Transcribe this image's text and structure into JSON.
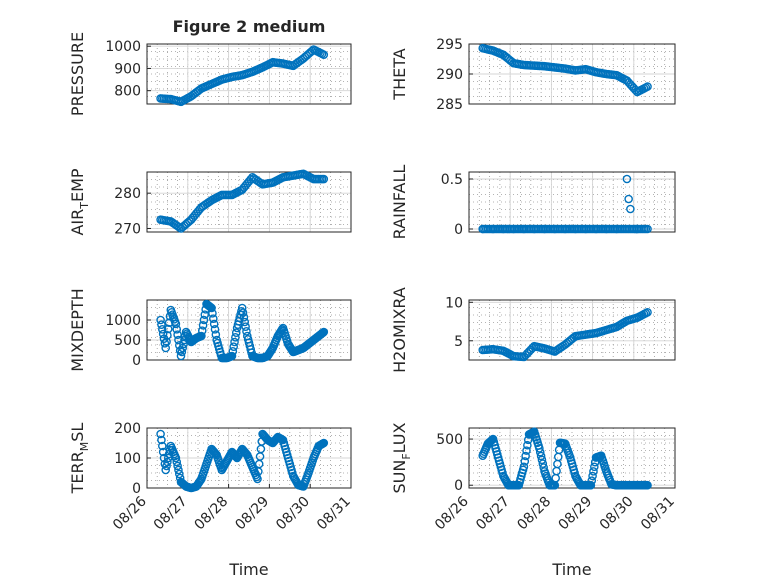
{
  "chart_data": [
    {
      "type": "scatter",
      "title": "Figure 2 medium",
      "ylabel": "PRESSURE",
      "ylim": [
        740,
        1010
      ],
      "yticks": [
        800,
        900,
        1000
      ],
      "y_ticklabels": [
        "800",
        "900",
        "1000"
      ],
      "x_ticklabels": [],
      "color": "#0072BD",
      "x": [
        "08/26 08:00",
        "08/26 14:00",
        "08/26 20:00",
        "08/27 02:00",
        "08/27 08:00",
        "08/27 14:00",
        "08/27 20:00",
        "08/28 02:00",
        "08/28 08:00",
        "08/28 14:00",
        "08/28 20:00",
        "08/29 02:00",
        "08/29 08:00",
        "08/29 14:00",
        "08/29 20:00",
        "08/30 02:00",
        "08/30 08:00"
      ],
      "y": [
        765,
        762,
        750,
        775,
        810,
        830,
        850,
        862,
        870,
        885,
        905,
        928,
        922,
        912,
        945,
        985,
        962
      ]
    },
    {
      "type": "scatter",
      "title": "",
      "ylabel": "THETA",
      "ylim": [
        285,
        295
      ],
      "yticks": [
        285,
        290,
        295
      ],
      "y_ticklabels": [
        "285",
        "290",
        "295"
      ],
      "x_ticklabels": [],
      "color": "#0072BD",
      "x": [
        "08/26 08:00",
        "08/26 14:00",
        "08/26 20:00",
        "08/27 02:00",
        "08/27 08:00",
        "08/27 14:00",
        "08/27 20:00",
        "08/28 02:00",
        "08/28 08:00",
        "08/28 14:00",
        "08/28 20:00",
        "08/29 02:00",
        "08/29 08:00",
        "08/29 14:00",
        "08/29 20:00",
        "08/30 02:00",
        "08/30 08:00"
      ],
      "y": [
        294.3,
        293.9,
        293.2,
        291.8,
        291.5,
        291.4,
        291.3,
        291.1,
        290.9,
        290.6,
        290.8,
        290.3,
        290.0,
        289.8,
        288.9,
        287.0,
        287.9
      ]
    },
    {
      "type": "scatter",
      "title": "",
      "ylabel": "AIR_TEMP",
      "ylim": [
        269,
        286
      ],
      "yticks": [
        270,
        280
      ],
      "y_ticklabels": [
        "270",
        "280"
      ],
      "x_ticklabels": [],
      "color": "#0072BD",
      "x": [
        "08/26 08:00",
        "08/26 14:00",
        "08/26 20:00",
        "08/27 02:00",
        "08/27 08:00",
        "08/27 14:00",
        "08/27 20:00",
        "08/28 02:00",
        "08/28 08:00",
        "08/28 14:00",
        "08/28 20:00",
        "08/29 02:00",
        "08/29 08:00",
        "08/29 14:00",
        "08/29 20:00",
        "08/30 02:00",
        "08/30 08:00"
      ],
      "y": [
        272.5,
        272.0,
        270.0,
        272.5,
        276.0,
        278.0,
        279.5,
        279.5,
        281.0,
        284.5,
        282.5,
        283.0,
        284.5,
        285.0,
        285.5,
        284.0,
        284.0
      ]
    },
    {
      "type": "scatter",
      "title": "",
      "ylabel": "RAINFALL",
      "ylim": [
        -0.03,
        0.57
      ],
      "yticks": [
        0,
        0.5
      ],
      "y_ticklabels": [
        "0",
        "0.5"
      ],
      "x_ticklabels": [],
      "color": "#0072BD",
      "x": [
        "08/26 08:00",
        "08/26 14:00",
        "08/26 20:00",
        "08/27 02:00",
        "08/27 08:00",
        "08/27 14:00",
        "08/27 20:00",
        "08/28 02:00",
        "08/28 08:00",
        "08/28 14:00",
        "08/28 20:00",
        "08/29 02:00",
        "08/29 08:00",
        "08/29 14:00",
        "08/29 20:00",
        "08/29 21:00",
        "08/29 22:00",
        "08/30 02:00",
        "08/30 08:00"
      ],
      "y": [
        0,
        0,
        0,
        0,
        0,
        0,
        0,
        0,
        0,
        0,
        0,
        0,
        0,
        0,
        0.5,
        0.3,
        0.2,
        0,
        0
      ]
    },
    {
      "type": "scatter",
      "title": "",
      "ylabel": "MIXDEPTH",
      "ylim": [
        0,
        1500
      ],
      "yticks": [
        0,
        500,
        1000
      ],
      "y_ticklabels": [
        "0",
        "500",
        "1000"
      ],
      "x_ticklabels": [],
      "color": "#0072BD",
      "x": [
        "08/26 08:00",
        "08/26 11:00",
        "08/26 14:00",
        "08/26 17:00",
        "08/26 20:00",
        "08/26 23:00",
        "08/27 02:00",
        "08/27 05:00",
        "08/27 08:00",
        "08/27 11:00",
        "08/27 14:00",
        "08/27 17:00",
        "08/27 20:00",
        "08/27 23:00",
        "08/28 02:00",
        "08/28 05:00",
        "08/28 08:00",
        "08/28 11:00",
        "08/28 14:00",
        "08/28 17:00",
        "08/28 20:00",
        "08/28 23:00",
        "08/29 02:00",
        "08/29 05:00",
        "08/29 08:00",
        "08/29 11:00",
        "08/29 14:00",
        "08/29 17:00",
        "08/29 20:00",
        "08/29 23:00",
        "08/30 02:00",
        "08/30 05:00",
        "08/30 08:00"
      ],
      "y": [
        1000,
        300,
        1250,
        900,
        100,
        700,
        450,
        550,
        600,
        1400,
        1300,
        500,
        50,
        50,
        100,
        800,
        1300,
        600,
        100,
        50,
        50,
        100,
        300,
        600,
        800,
        400,
        200,
        250,
        300,
        400,
        500,
        600,
        700
      ]
    },
    {
      "type": "scatter",
      "title": "",
      "ylabel": "H2OMIXRA",
      "ylim": [
        2.5,
        10.3
      ],
      "yticks": [
        5,
        10
      ],
      "y_ticklabels": [
        "5",
        "10"
      ],
      "x_ticklabels": [],
      "color": "#0072BD",
      "x": [
        "08/26 08:00",
        "08/26 14:00",
        "08/26 20:00",
        "08/27 02:00",
        "08/27 08:00",
        "08/27 14:00",
        "08/27 20:00",
        "08/28 02:00",
        "08/28 08:00",
        "08/28 14:00",
        "08/28 20:00",
        "08/29 02:00",
        "08/29 08:00",
        "08/29 14:00",
        "08/29 20:00",
        "08/30 02:00",
        "08/30 08:00"
      ],
      "y": [
        3.8,
        3.9,
        3.7,
        3.0,
        2.9,
        4.3,
        4.0,
        3.6,
        4.5,
        5.6,
        5.8,
        6.0,
        6.4,
        6.8,
        7.6,
        8.0,
        8.7
      ]
    },
    {
      "type": "scatter",
      "title": "",
      "ylabel": "TERR_MSL",
      "ylim": [
        0,
        200
      ],
      "yticks": [
        0,
        100,
        200
      ],
      "y_ticklabels": [
        "0",
        "100",
        "200"
      ],
      "x_ticks": [
        "08/26 00:00",
        "08/27 00:00",
        "08/28 00:00",
        "08/29 00:00",
        "08/30 00:00",
        "08/31 00:00"
      ],
      "x_ticklabels": [
        "08/26",
        "08/27",
        "08/28",
        "08/29",
        "08/30",
        "08/31"
      ],
      "xlim": [
        "08/26 00:00",
        "08/31 00:00"
      ],
      "xlabel": "Time",
      "color": "#0072BD",
      "x": [
        "08/26 08:00",
        "08/26 11:00",
        "08/26 14:00",
        "08/26 17:00",
        "08/26 20:00",
        "08/26 23:00",
        "08/27 02:00",
        "08/27 05:00",
        "08/27 08:00",
        "08/27 11:00",
        "08/27 14:00",
        "08/27 17:00",
        "08/27 20:00",
        "08/27 23:00",
        "08/28 02:00",
        "08/28 05:00",
        "08/28 08:00",
        "08/28 11:00",
        "08/28 14:00",
        "08/28 17:00",
        "08/28 20:00",
        "08/28 23:00",
        "08/29 02:00",
        "08/29 05:00",
        "08/29 08:00",
        "08/29 11:00",
        "08/29 14:00",
        "08/29 17:00",
        "08/29 20:00",
        "08/29 23:00",
        "08/30 02:00",
        "08/30 05:00",
        "08/30 08:00"
      ],
      "y": [
        180,
        60,
        140,
        100,
        20,
        5,
        0,
        5,
        30,
        80,
        130,
        110,
        60,
        90,
        120,
        100,
        130,
        110,
        70,
        30,
        180,
        160,
        150,
        170,
        160,
        100,
        40,
        10,
        5,
        50,
        100,
        140,
        150
      ]
    },
    {
      "type": "scatter",
      "title": "",
      "ylabel": "SUN_FLUX",
      "ylim": [
        -30,
        620
      ],
      "yticks": [
        0,
        500
      ],
      "y_ticklabels": [
        "0",
        "500"
      ],
      "x_ticks": [
        "08/26 00:00",
        "08/27 00:00",
        "08/28 00:00",
        "08/29 00:00",
        "08/30 00:00",
        "08/31 00:00"
      ],
      "x_ticklabels": [
        "08/26",
        "08/27",
        "08/28",
        "08/29",
        "08/30",
        "08/31"
      ],
      "xlim": [
        "08/26 00:00",
        "08/31 00:00"
      ],
      "xlabel": "Time",
      "color": "#0072BD",
      "x": [
        "08/26 08:00",
        "08/26 11:00",
        "08/26 14:00",
        "08/26 17:00",
        "08/26 20:00",
        "08/26 23:00",
        "08/27 02:00",
        "08/27 05:00",
        "08/27 08:00",
        "08/27 11:00",
        "08/27 14:00",
        "08/27 17:00",
        "08/27 20:00",
        "08/27 23:00",
        "08/28 02:00",
        "08/28 05:00",
        "08/28 08:00",
        "08/28 11:00",
        "08/28 14:00",
        "08/28 17:00",
        "08/28 20:00",
        "08/28 23:00",
        "08/29 02:00",
        "08/29 05:00",
        "08/29 08:00",
        "08/29 11:00",
        "08/29 14:00",
        "08/29 17:00",
        "08/29 20:00",
        "08/29 23:00",
        "08/30 02:00",
        "08/30 05:00",
        "08/30 08:00"
      ],
      "y": [
        320,
        450,
        500,
        300,
        100,
        0,
        0,
        0,
        200,
        550,
        580,
        400,
        150,
        0,
        0,
        460,
        450,
        300,
        100,
        0,
        0,
        0,
        300,
        320,
        150,
        10,
        0,
        0,
        0,
        0,
        0,
        0,
        0
      ]
    }
  ]
}
